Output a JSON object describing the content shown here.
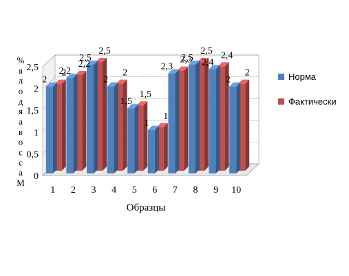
{
  "chart_data": {
    "type": "bar",
    "categories": [
      "1",
      "2",
      "3",
      "4",
      "5",
      "6",
      "7",
      "8",
      "9",
      "10"
    ],
    "series": [
      {
        "name": "Норма",
        "values": [
          2,
          2.2,
          2.5,
          2,
          1.5,
          1,
          2.3,
          2.5,
          2.4,
          2
        ]
      },
      {
        "name": "Фактически",
        "values": [
          2,
          2.2,
          2.5,
          2,
          1.5,
          1,
          2.3,
          2.5,
          2.4,
          2
        ]
      }
    ],
    "series_colors": [
      "#4f81bd",
      "#c0504d"
    ],
    "data_labels": [
      [
        "2",
        "2,2",
        "2,5",
        "2",
        "1,5",
        "1",
        "2,3",
        "2,5",
        "2,4",
        "2"
      ],
      [
        "2",
        "2,2",
        "2,5",
        "2",
        "1,5",
        "1",
        "2,3",
        "2,5",
        "2,4",
        "2"
      ]
    ],
    "xlabel": "Образцы",
    "ylabel": "Массовая доля, %",
    "ylim": [
      0,
      2.5
    ],
    "yticks": [
      "0",
      "0,5",
      "1",
      "1,5",
      "2",
      "2,5"
    ],
    "legend_position": "right",
    "grid": true,
    "style": "3d-clustered-column"
  }
}
